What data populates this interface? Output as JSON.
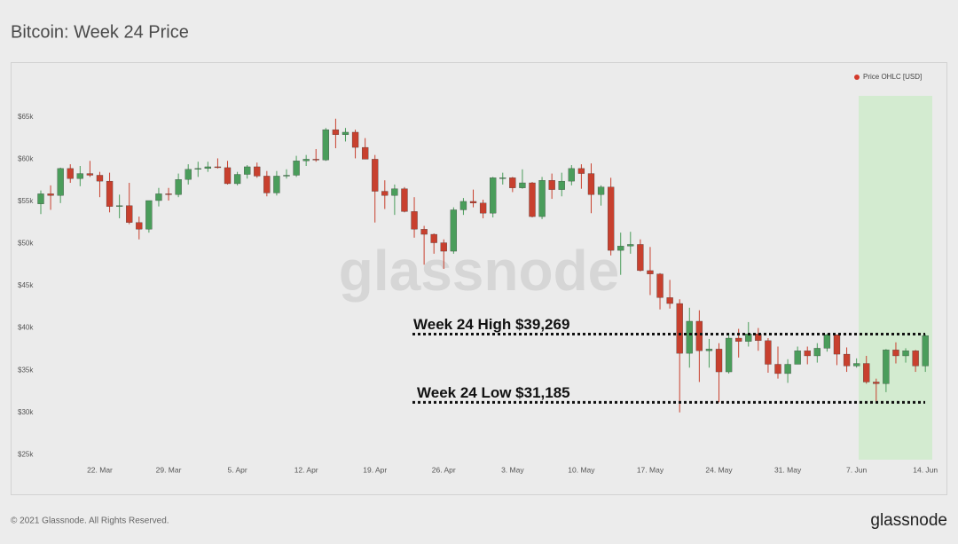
{
  "chart_data": {
    "type": "candlestick",
    "title": "Bitcoin: Week 24 Price",
    "watermark": "glassnode",
    "categories": [
      null,
      null,
      null,
      null,
      null,
      null,
      "22. Mar",
      null,
      null,
      null,
      null,
      null,
      null,
      "29. Mar",
      null,
      null,
      null,
      null,
      null,
      null,
      "5. Apr",
      null,
      null,
      null,
      null,
      null,
      null,
      "12. Apr",
      null,
      null,
      null,
      null,
      null,
      null,
      "19. Apr",
      null,
      null,
      null,
      null,
      null,
      null,
      "26. Apr",
      null,
      null,
      null,
      null,
      null,
      null,
      "3. May",
      null,
      null,
      null,
      null,
      null,
      null,
      "10. May",
      null,
      null,
      null,
      null,
      null,
      null,
      "17. May",
      null,
      null,
      null,
      null,
      null,
      null,
      "24. May",
      null,
      null,
      null,
      null,
      null,
      null,
      "31. May",
      null,
      null,
      null,
      null,
      null,
      null,
      "7. Jun",
      null,
      null,
      null,
      null,
      null,
      null,
      "14. Jun"
    ],
    "series": [
      {
        "name": "Price OHLC [USD]",
        "color": "#d33a2c",
        "open": [
          54700,
          55900,
          55700,
          58900,
          57700,
          58300,
          58100,
          57400,
          54400,
          54500,
          52500,
          51700,
          55100,
          55900,
          55800,
          57600,
          58800,
          58900,
          59100,
          59000,
          57100,
          58200,
          59100,
          58000,
          56000,
          58000,
          58100,
          59800,
          60000,
          59900,
          63500,
          62900,
          63200,
          61400,
          60000,
          56200,
          55700,
          56500,
          53800,
          51700,
          51100,
          50100,
          49100,
          54000,
          55000,
          54800,
          53600,
          57800,
          57800,
          56600,
          57200,
          53200,
          57500,
          56400,
          57400,
          58900,
          58300,
          55800,
          56700,
          49200,
          49700,
          49900,
          46800,
          46400,
          43600,
          42900,
          37000,
          40800,
          37300,
          37500,
          34800,
          38800,
          38400,
          39300,
          38500,
          35700,
          34600,
          35700,
          37300,
          36700,
          37600,
          39200,
          36900,
          35500,
          35800,
          33600,
          33400,
          37400,
          36700,
          37300,
          35500
        ],
        "high": [
          56300,
          56900,
          59000,
          59400,
          59200,
          59800,
          58500,
          58400,
          55800,
          57200,
          53200,
          55100,
          56600,
          56600,
          58300,
          59400,
          59700,
          59700,
          60100,
          59800,
          58500,
          59300,
          59600,
          58600,
          58600,
          58800,
          60400,
          60500,
          61200,
          63700,
          64800,
          63700,
          63500,
          62500,
          60500,
          57500,
          57000,
          56700,
          55500,
          52100,
          51200,
          50500,
          54300,
          55400,
          56400,
          55200,
          57900,
          58400,
          57900,
          58800,
          57300,
          57900,
          58300,
          58400,
          59300,
          59400,
          59500,
          56900,
          57800,
          51300,
          51400,
          50500,
          49600,
          46500,
          45700,
          43400,
          42400,
          42100,
          38700,
          38200,
          39400,
          39900,
          40700,
          40000,
          38800,
          37800,
          36300,
          37800,
          37800,
          38200,
          39300,
          39200,
          37700,
          36400,
          36700,
          34000,
          37500,
          38300,
          37600,
          37400,
          39269
        ],
        "low": [
          53500,
          54000,
          54800,
          57200,
          56800,
          57900,
          55500,
          53700,
          53000,
          52300,
          50500,
          51300,
          54400,
          55100,
          55500,
          57000,
          57900,
          58500,
          58900,
          57000,
          56900,
          57700,
          57800,
          55600,
          55700,
          57700,
          57900,
          59200,
          59700,
          59800,
          61300,
          62100,
          60100,
          60000,
          52500,
          54100,
          53400,
          53700,
          50700,
          47500,
          48800,
          47000,
          48800,
          53400,
          54300,
          53000,
          53100,
          57000,
          56100,
          56500,
          53100,
          52900,
          55300,
          55600,
          56900,
          56500,
          53600,
          54500,
          48600,
          46300,
          48800,
          46700,
          43900,
          42200,
          42300,
          30000,
          35300,
          33600,
          35300,
          31200,
          34600,
          36500,
          37800,
          37300,
          34700,
          34000,
          33500,
          35700,
          35700,
          35900,
          37200,
          35600,
          34800,
          35300,
          33400,
          31185,
          32400,
          35800,
          35900,
          34800,
          34800
        ],
        "close": [
          55900,
          55700,
          58900,
          57700,
          58300,
          58100,
          57400,
          54400,
          54500,
          52500,
          51700,
          55100,
          55900,
          55800,
          57600,
          58800,
          58900,
          59100,
          59000,
          57100,
          58200,
          59100,
          58000,
          56000,
          58000,
          58100,
          59800,
          60000,
          59900,
          63500,
          62900,
          63200,
          61400,
          60000,
          56200,
          55700,
          56500,
          53800,
          51700,
          51100,
          50100,
          49100,
          54000,
          55000,
          54800,
          53600,
          57800,
          57800,
          56600,
          57200,
          53200,
          57500,
          56400,
          57400,
          58900,
          58300,
          55800,
          56700,
          49200,
          49700,
          49900,
          46800,
          46400,
          43600,
          42900,
          37000,
          40800,
          37300,
          37500,
          34800,
          38800,
          38400,
          39300,
          38500,
          35700,
          34600,
          35700,
          37300,
          36700,
          37600,
          39200,
          36900,
          35500,
          35800,
          33600,
          33400,
          37400,
          36700,
          37300,
          35500,
          39100
        ]
      }
    ],
    "up_color": "#4a9d5b",
    "down_color": "#c8402e",
    "ylim": [
      24500,
      69400
    ],
    "yticks": [
      {
        "value": 25000,
        "label": "$25k"
      },
      {
        "value": 30000,
        "label": "$30k"
      },
      {
        "value": 35000,
        "label": "$35k"
      },
      {
        "value": 40000,
        "label": "$40k"
      },
      {
        "value": 45000,
        "label": "$45k"
      },
      {
        "value": 50000,
        "label": "$50k"
      },
      {
        "value": 55000,
        "label": "$55k"
      },
      {
        "value": 60000,
        "label": "$60k"
      },
      {
        "value": 65000,
        "label": "$65k"
      }
    ],
    "legend": "top-right",
    "annotations": [
      {
        "text": "Week 24 High $39,269",
        "value": 39269
      },
      {
        "text": "Week 24 Low $31,185",
        "value": 31185
      }
    ]
  },
  "footer": {
    "copyright": "© 2021 Glassnode. All Rights Reserved.",
    "logo": "glassnode"
  }
}
